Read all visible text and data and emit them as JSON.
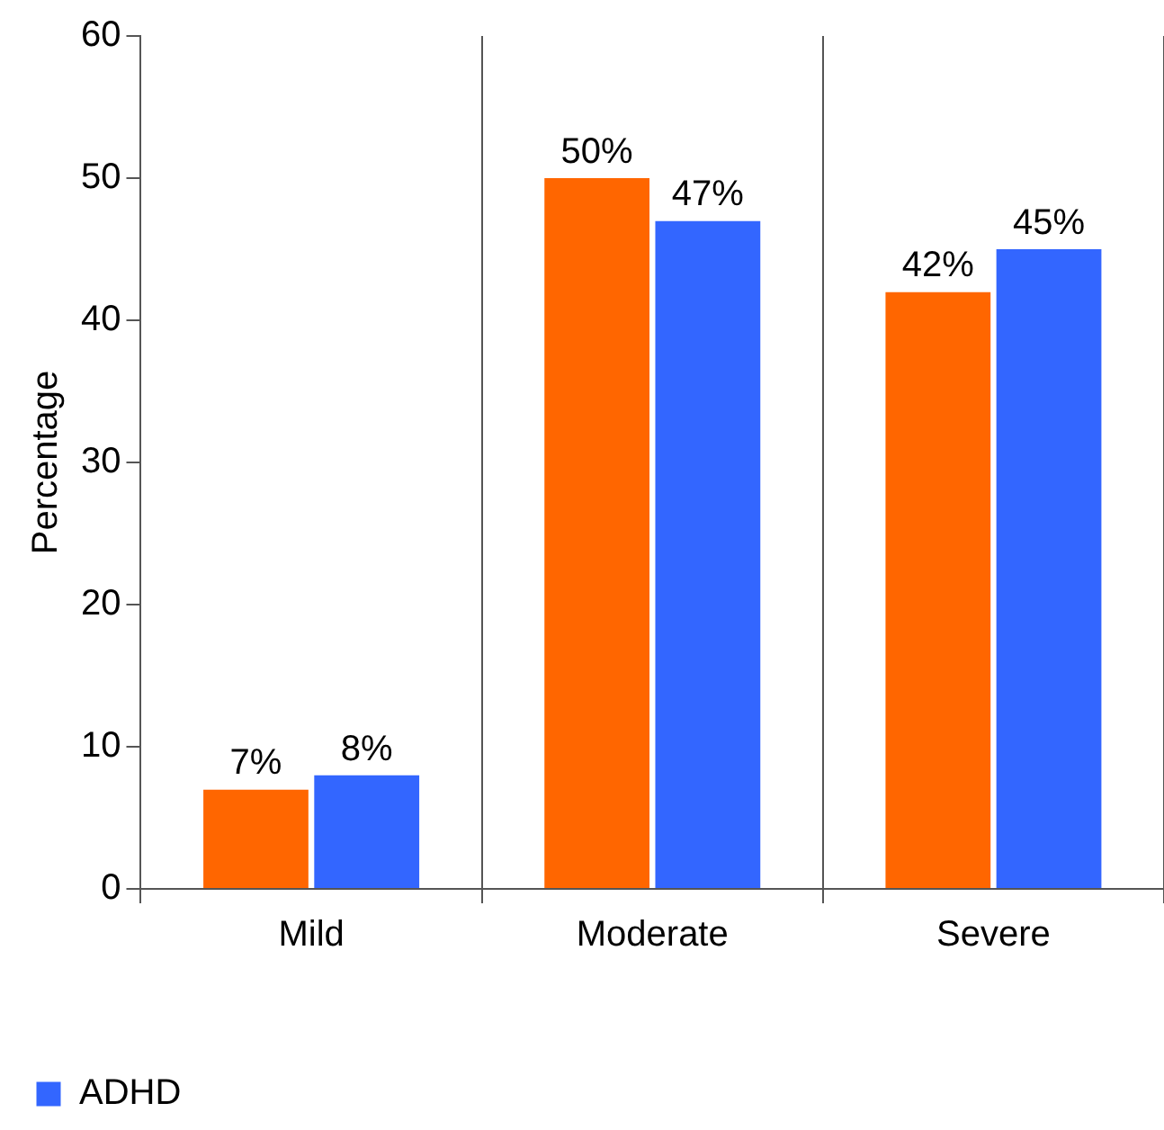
{
  "chart_data": {
    "type": "bar",
    "ylabel": "Percentage",
    "categories": [
      "Mild",
      "Moderate",
      "Severe"
    ],
    "series": [
      {
        "color": "#ff6600",
        "values": [
          7,
          50,
          42
        ],
        "value_labels": [
          "7%",
          "50%",
          "42%"
        ]
      },
      {
        "name": "ADHD",
        "color": "#3366ff",
        "values": [
          8,
          47,
          45
        ],
        "value_labels": [
          "8%",
          "47%",
          "45%"
        ]
      }
    ],
    "ylim": [
      0,
      60
    ],
    "yticks": [
      0,
      10,
      20,
      30,
      40,
      50,
      60
    ],
    "grid": "x",
    "legend": "bottom left"
  }
}
